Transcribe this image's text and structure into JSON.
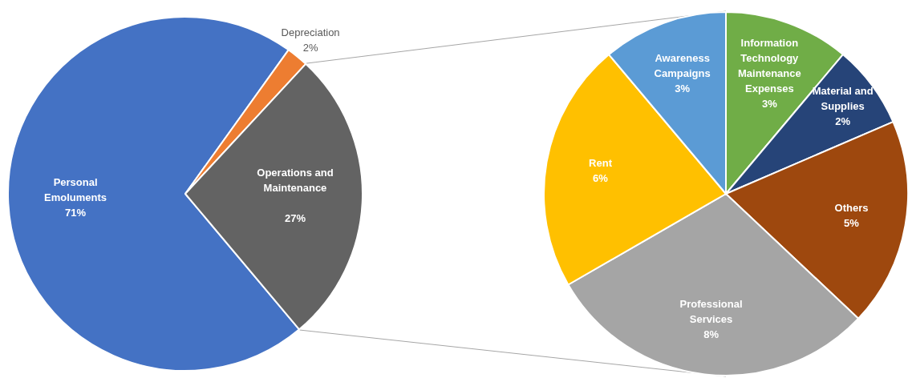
{
  "chart_data": [
    {
      "type": "pie",
      "categories": [
        "Personal Emoluments",
        "Depreciation",
        "Operations and Maintenance"
      ],
      "values": [
        71,
        2,
        27
      ],
      "colors": [
        "#4472c4",
        "#ed7d31",
        "#636363"
      ],
      "value_labels": [
        "71%",
        "2%",
        "27%"
      ],
      "legend": false
    },
    {
      "type": "pie",
      "categories": [
        "Information Technology Maintenance Expenses",
        "Material and Supplies",
        "Others",
        "Professional Services",
        "Rent",
        "Awareness Campaigns"
      ],
      "values": [
        3,
        2,
        5,
        8,
        6,
        3
      ],
      "colors": [
        "#70ad47",
        "#264478",
        "#9e480e",
        "#a5a5a5",
        "#ffc000",
        "#5b9bd5"
      ],
      "value_labels": [
        "3%",
        "2%",
        "5%",
        "8%",
        "6%",
        "3%"
      ],
      "legend": false
    }
  ]
}
